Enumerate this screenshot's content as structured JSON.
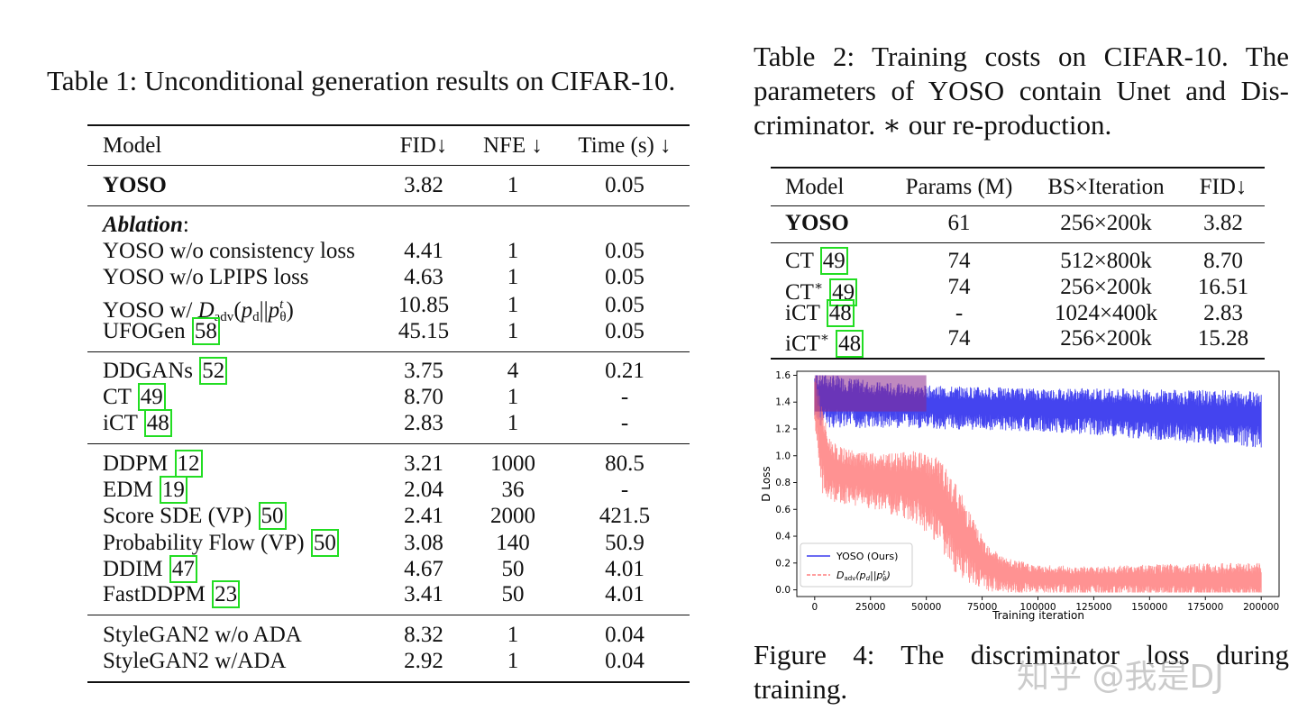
{
  "table1": {
    "caption": "Table 1: Unconditional generation results on CIFAR-10.",
    "headers": [
      "Model",
      "FID↓",
      "NFE ↓",
      "Time (s) ↓"
    ],
    "yoso": {
      "model": "YOSO",
      "fid": "3.82",
      "nfe": "1",
      "time": "0.05"
    },
    "ablation_label": "Ablation",
    "ablation_suffix": ":",
    "ablation_rows": [
      {
        "model": "YOSO w/o consistency loss",
        "fid": "4.41",
        "nfe": "1",
        "time": "0.05"
      },
      {
        "model": "YOSO w/o LPIPS loss",
        "fid": "4.63",
        "nfe": "1",
        "time": "0.05"
      },
      {
        "model": "YOSO w/ ",
        "fid": "10.85",
        "nfe": "1",
        "time": "0.05"
      },
      {
        "model": "UFOGen ",
        "cite": "58",
        "fid": "45.15",
        "nfe": "1",
        "time": "0.05"
      }
    ],
    "group2": [
      {
        "model": "DDGANs ",
        "cite": "52",
        "fid": "3.75",
        "nfe": "4",
        "time": "0.21"
      },
      {
        "model": "CT ",
        "cite": "49",
        "fid": "8.70",
        "nfe": "1",
        "time": "-"
      },
      {
        "model": "iCT ",
        "cite": "48",
        "fid": "2.83",
        "nfe": "1",
        "time": "-"
      }
    ],
    "group3": [
      {
        "model": "DDPM ",
        "cite": "12",
        "fid": "3.21",
        "nfe": "1000",
        "time": "80.5"
      },
      {
        "model": "EDM ",
        "cite": "19",
        "fid": "2.04",
        "nfe": "36",
        "time": "-"
      },
      {
        "model": "Score SDE (VP) ",
        "cite": "50",
        "fid": "2.41",
        "nfe": "2000",
        "time": "421.5"
      },
      {
        "model": "Probability Flow (VP) ",
        "cite": "50",
        "fid": "3.08",
        "nfe": "140",
        "time": "50.9"
      },
      {
        "model": "DDIM ",
        "cite": "47",
        "fid": "4.67",
        "nfe": "50",
        "time": "4.01"
      },
      {
        "model": "FastDDPM ",
        "cite": "23",
        "fid": "3.41",
        "nfe": "50",
        "time": "4.01"
      }
    ],
    "group4": [
      {
        "model": "StyleGAN2 w/o ADA",
        "fid": "8.32",
        "nfe": "1",
        "time": "0.04"
      },
      {
        "model": "StyleGAN2 w/ADA",
        "fid": "2.92",
        "nfe": "1",
        "time": "0.04"
      }
    ]
  },
  "table2": {
    "caption_lines": [
      "Table 2: Training costs on CIFAR-10. The",
      "parameters of YOSO contain Unet and Dis-",
      "criminator. ∗ our re-production."
    ],
    "headers": [
      "Model",
      "Params (M)",
      "BS×Iteration",
      "FID↓"
    ],
    "yoso": {
      "model": "YOSO",
      "params": "61",
      "bsi": "256×200k",
      "fid": "3.82"
    },
    "rows": [
      {
        "model": "CT ",
        "cite": "49",
        "params": "74",
        "bsi": "512×800k",
        "fid": "8.70"
      },
      {
        "model": "CT",
        "star": "∗",
        "cite": "49",
        "params": "74",
        "bsi": "256×200k",
        "fid": "16.51"
      },
      {
        "model": "iCT ",
        "cite": "48",
        "params": "-",
        "bsi": "1024×400k",
        "fid": "2.83"
      },
      {
        "model": "iCT",
        "star": "∗",
        "cite": "48",
        "params": "74",
        "bsi": "256×200k",
        "fid": "15.28"
      }
    ]
  },
  "figure4": {
    "caption_lines": [
      "Figure 4: The discriminator loss during",
      "training."
    ],
    "xlabel": "Training iteration",
    "ylabel": "D Loss",
    "xticks": [
      "0",
      "25000",
      "50000",
      "75000",
      "100000",
      "125000",
      "150000",
      "175000",
      "200000"
    ],
    "yticks": [
      "0.0",
      "0.2",
      "0.4",
      "0.6",
      "0.8",
      "1.0",
      "1.2",
      "1.4",
      "1.6"
    ],
    "legend": [
      "YOSO (Ours)",
      ""
    ],
    "colors": {
      "yoso": "#3a3aee",
      "dadv": "#ff7f7f"
    }
  },
  "chart_data": {
    "type": "line",
    "title": "",
    "xlabel": "Training iteration",
    "ylabel": "D Loss",
    "xlim": [
      -8000,
      208000
    ],
    "ylim": [
      -0.05,
      1.63
    ],
    "legend_position": "bottom-left",
    "series": [
      {
        "name": "YOSO (Ours)",
        "x": [
          0,
          10000,
          25000,
          50000,
          75000,
          100000,
          125000,
          150000,
          175000,
          200000
        ],
        "y": [
          1.45,
          1.42,
          1.4,
          1.38,
          1.37,
          1.36,
          1.35,
          1.33,
          1.31,
          1.3
        ],
        "spread": [
          0.15,
          0.15,
          0.13,
          0.12,
          0.12,
          0.12,
          0.13,
          0.14,
          0.15,
          0.16
        ]
      },
      {
        "x": [
          0,
          3000,
          6000,
          10000,
          20000,
          30000,
          45000,
          55000,
          65000,
          75000,
          85000,
          100000,
          125000,
          150000,
          175000,
          200000
        ],
        "y": [
          1.45,
          1.1,
          0.95,
          0.88,
          0.85,
          0.82,
          0.8,
          0.7,
          0.45,
          0.22,
          0.12,
          0.09,
          0.08,
          0.08,
          0.08,
          0.08
        ],
        "spread": [
          0.15,
          0.25,
          0.18,
          0.16,
          0.15,
          0.16,
          0.2,
          0.25,
          0.25,
          0.15,
          0.1,
          0.08,
          0.08,
          0.09,
          0.1,
          0.1
        ]
      }
    ]
  },
  "watermark": "知乎 @我是DJ"
}
